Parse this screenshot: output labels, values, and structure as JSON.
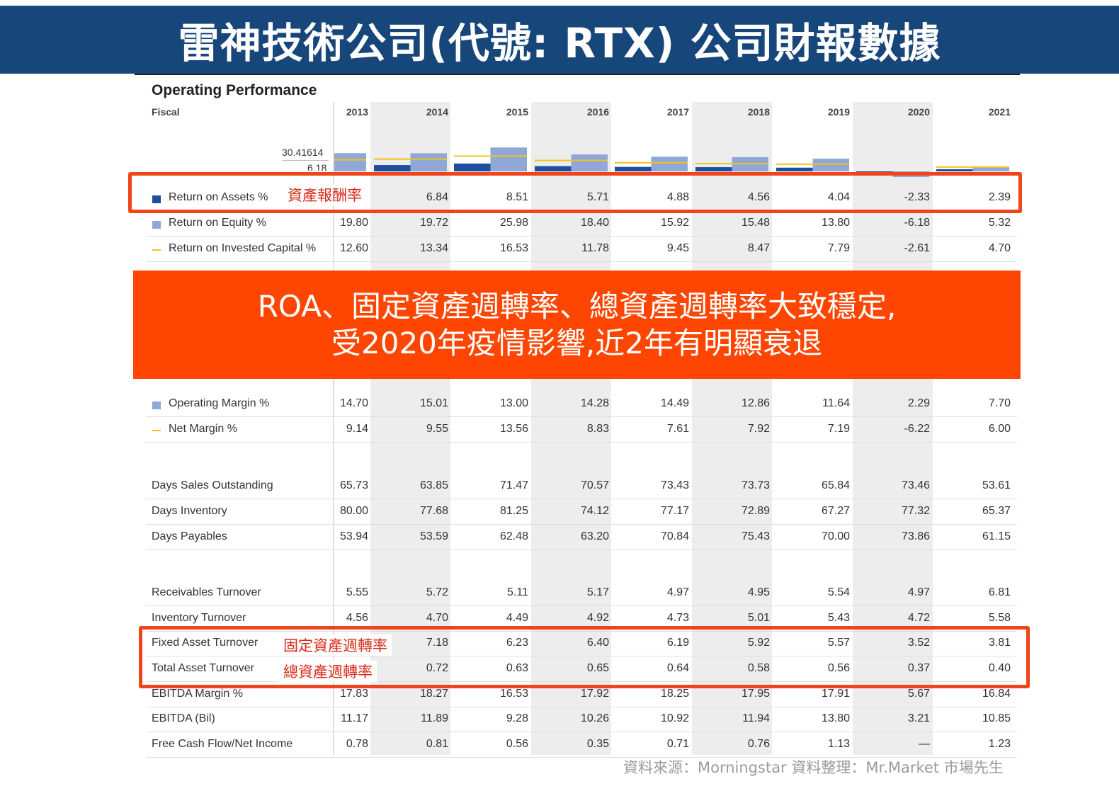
{
  "header": {
    "title": "雷神技術公司(代號: RTX) 公司財報數據"
  },
  "section": {
    "title": "Operating Performance",
    "fiscal_label": "Fiscal"
  },
  "chart_data": {
    "type": "bar",
    "categories": [
      "2013",
      "2014",
      "2015",
      "2016",
      "2017",
      "2018",
      "2019",
      "2020",
      "2021"
    ],
    "axis_labels": [
      "30.41614",
      "6.18"
    ],
    "series": [
      {
        "name": "Return on Assets %",
        "color": "#1f4e9c",
        "kind": "bar",
        "values": [
          null,
          6.84,
          8.51,
          5.71,
          4.88,
          4.56,
          4.04,
          -2.33,
          2.39
        ]
      },
      {
        "name": "Return on Equity %",
        "color": "#8fa8d8",
        "kind": "bar",
        "values": [
          19.8,
          19.72,
          25.98,
          18.4,
          15.92,
          15.48,
          13.8,
          -6.18,
          5.32
        ]
      },
      {
        "name": "Return on Invested Capital %",
        "color": "#f2c418",
        "kind": "line",
        "values": [
          12.6,
          13.34,
          16.53,
          11.78,
          9.45,
          8.47,
          7.79,
          -2.61,
          4.7
        ]
      }
    ]
  },
  "rows": {
    "roa": {
      "label": "Return on Assets %",
      "values": [
        "",
        "6.84",
        "8.51",
        "5.71",
        "4.88",
        "4.56",
        "4.04",
        "-2.33",
        "2.39"
      ]
    },
    "roe": {
      "label": "Return on Equity %",
      "values": [
        "19.80",
        "19.72",
        "25.98",
        "18.40",
        "15.92",
        "15.48",
        "13.80",
        "-6.18",
        "5.32"
      ]
    },
    "roic": {
      "label": "Return on Invested Capital %",
      "values": [
        "12.60",
        "13.34",
        "16.53",
        "11.78",
        "9.45",
        "8.47",
        "7.79",
        "-2.61",
        "4.70"
      ]
    },
    "opm": {
      "label": "Operating Margin %",
      "values": [
        "14.70",
        "15.01",
        "13.00",
        "14.28",
        "14.49",
        "12.86",
        "11.64",
        "2.29",
        "7.70"
      ]
    },
    "npm": {
      "label": "Net Margin %",
      "values": [
        "9.14",
        "9.55",
        "13.56",
        "8.83",
        "7.61",
        "7.92",
        "7.19",
        "-6.22",
        "6.00"
      ]
    },
    "dso": {
      "label": "Days Sales Outstanding",
      "values": [
        "65.73",
        "63.85",
        "71.47",
        "70.57",
        "73.43",
        "73.73",
        "65.84",
        "73.46",
        "53.61"
      ]
    },
    "dinv": {
      "label": "Days Inventory",
      "values": [
        "80.00",
        "77.68",
        "81.25",
        "74.12",
        "77.17",
        "72.89",
        "67.27",
        "77.32",
        "65.37"
      ]
    },
    "dpay": {
      "label": "Days Payables",
      "values": [
        "53.94",
        "53.59",
        "62.48",
        "63.20",
        "70.84",
        "75.43",
        "70.00",
        "73.86",
        "61.15"
      ]
    },
    "rect": {
      "label": "Receivables Turnover",
      "values": [
        "5.55",
        "5.72",
        "5.11",
        "5.17",
        "4.97",
        "4.95",
        "5.54",
        "4.97",
        "6.81"
      ]
    },
    "invt": {
      "label": "Inventory Turnover",
      "values": [
        "4.56",
        "4.70",
        "4.49",
        "4.92",
        "4.73",
        "5.01",
        "5.43",
        "4.72",
        "5.58"
      ]
    },
    "fat": {
      "label": "Fixed Asset Turnover",
      "values": [
        "",
        "7.18",
        "6.23",
        "6.40",
        "6.19",
        "5.92",
        "5.57",
        "3.52",
        "3.81"
      ]
    },
    "tat": {
      "label": "Total Asset Turnover",
      "values": [
        "",
        "0.72",
        "0.63",
        "0.65",
        "0.64",
        "0.58",
        "0.56",
        "0.37",
        "0.40"
      ]
    },
    "ebm": {
      "label": "EBITDA Margin %",
      "values": [
        "17.83",
        "18.27",
        "16.53",
        "17.92",
        "18.25",
        "17.95",
        "17.91",
        "5.67",
        "16.84"
      ]
    },
    "ebitda": {
      "label": "EBITDA (Bil)",
      "values": [
        "11.17",
        "11.89",
        "9.28",
        "10.26",
        "10.92",
        "11.94",
        "13.80",
        "3.21",
        "10.85"
      ]
    },
    "fcf": {
      "label": "Free Cash Flow/Net Income",
      "values": [
        "0.78",
        "0.81",
        "0.56",
        "0.35",
        "0.71",
        "0.76",
        "1.13",
        "—",
        "1.23"
      ]
    }
  },
  "annotations": {
    "roa": "資產報酬率",
    "fat": "固定資產週轉率",
    "tat": "總資產週轉率"
  },
  "callout": {
    "line1": "ROA、固定資產週轉率、總資產週轉率大致穩定,",
    "line2": "受2020年疫情影響,近2年有明顯衰退"
  },
  "source": "資料來源：Morningstar  資料整理：Mr.Market 市場先生",
  "colors": {
    "banner": "#17467a",
    "accent": "#fe4602",
    "highlight_box": "#f0451a"
  }
}
